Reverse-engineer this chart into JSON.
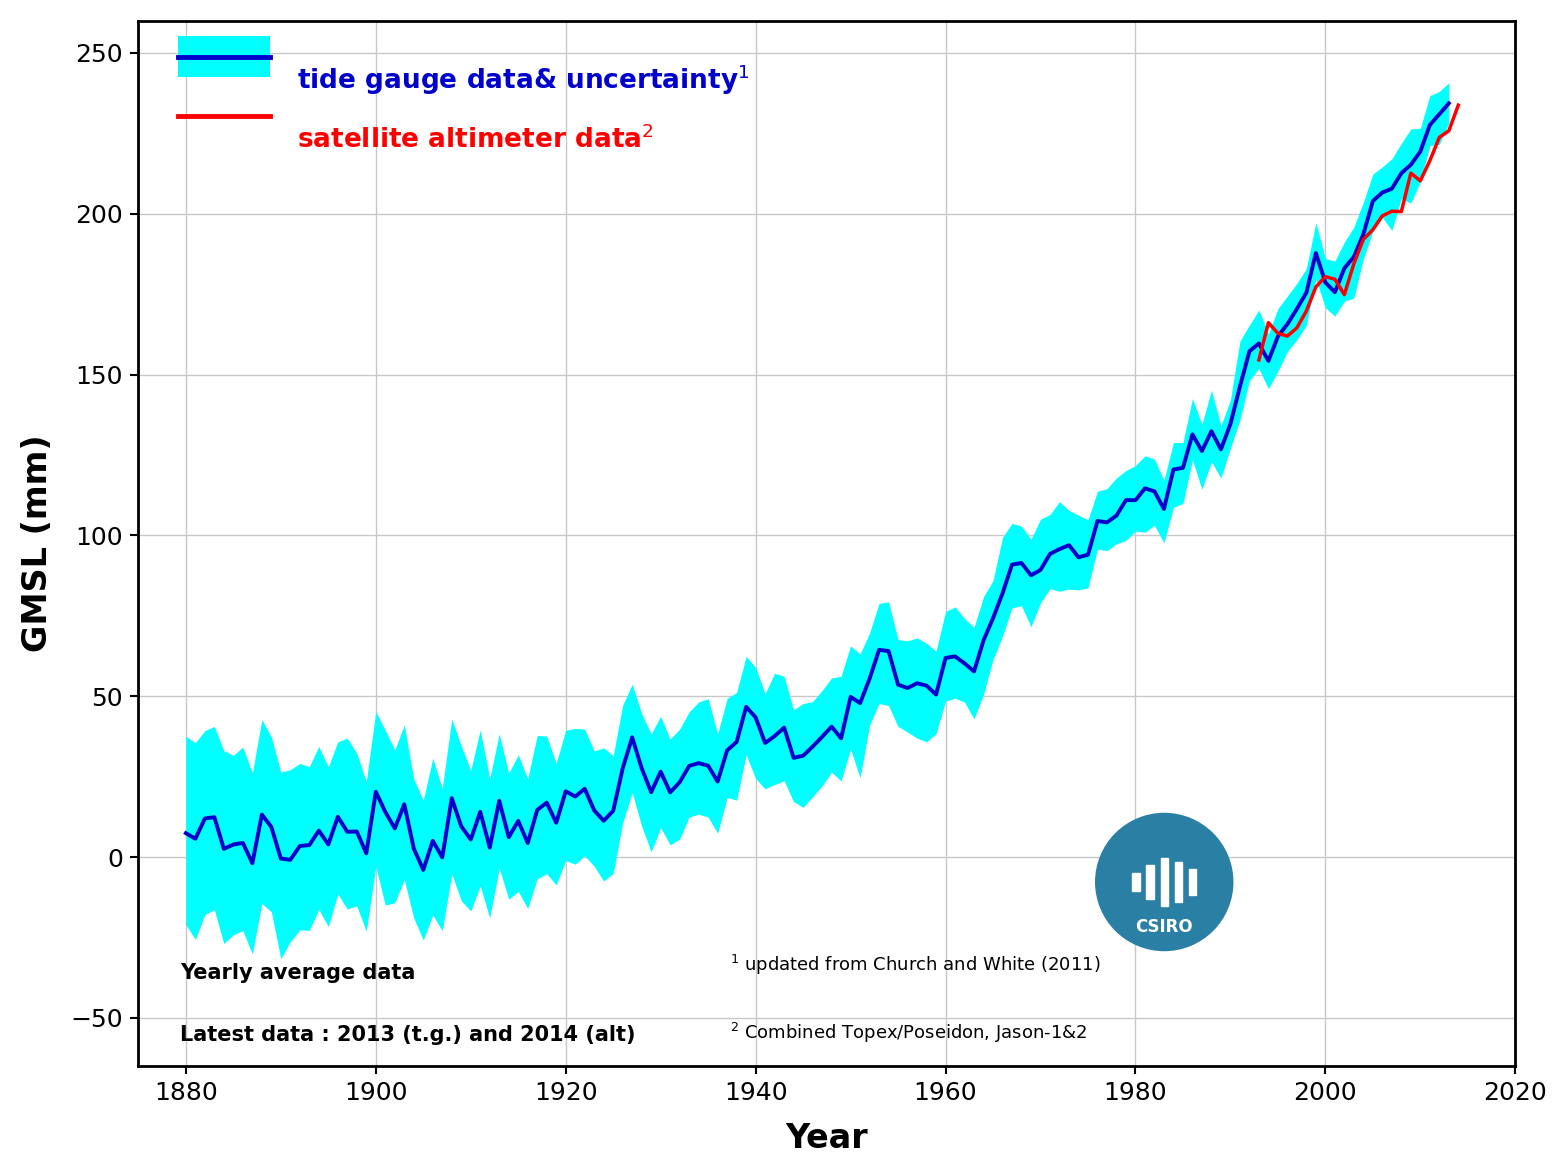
{
  "title": "",
  "xlabel": "Year",
  "ylabel": "GMSL (mm)",
  "xlim": [
    1875,
    2020
  ],
  "ylim": [
    -65,
    260
  ],
  "xticks": [
    1880,
    1900,
    1920,
    1940,
    1960,
    1980,
    2000,
    2020
  ],
  "yticks": [
    -50,
    0,
    50,
    100,
    150,
    200,
    250
  ],
  "tide_color": "#0000CC",
  "uncertainty_color": "#00FFFF",
  "satellite_color": "#FF0000",
  "background_color": "#FFFFFF",
  "grid_color": "#C8C8C8",
  "legend_label_tide": "tide gauge data& uncertainty",
  "legend_label_sat": "satellite altimeter data",
  "footnote1": " updated from Church and White (2011)",
  "footnote2": " Combined Topex/Poseidon, Jason-1&2",
  "bottom_left1": "Yearly average data",
  "bottom_left2": "Latest data : 2013 (t.g.) and 2014 (alt)",
  "csiro_color": "#2A7FA5"
}
